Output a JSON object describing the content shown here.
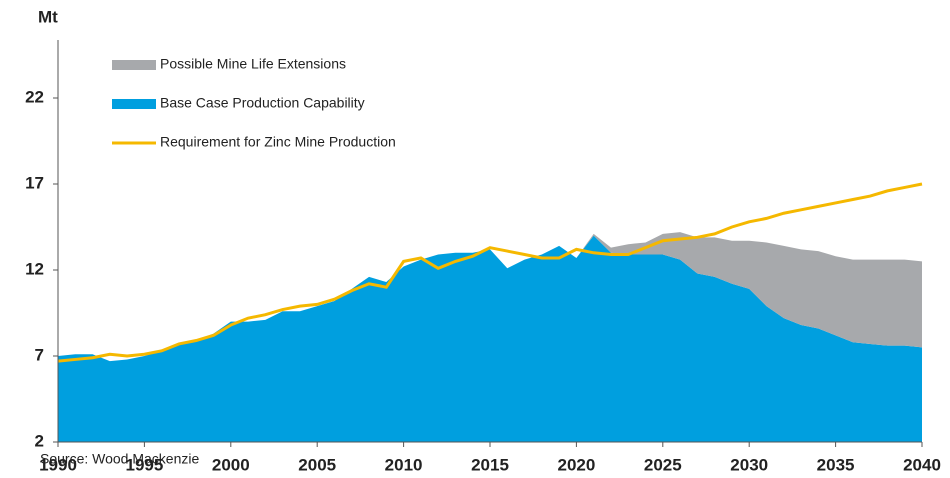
{
  "chart_data": {
    "type": "area",
    "y_label": "Mt",
    "source": "Source: Wood Mackenzie",
    "x": [
      1990,
      1991,
      1992,
      1993,
      1994,
      1995,
      1996,
      1997,
      1998,
      1999,
      2000,
      2001,
      2002,
      2003,
      2004,
      2005,
      2006,
      2007,
      2008,
      2009,
      2010,
      2011,
      2012,
      2013,
      2014,
      2015,
      2016,
      2017,
      2018,
      2019,
      2020,
      2021,
      2022,
      2023,
      2024,
      2025,
      2026,
      2027,
      2028,
      2029,
      2030,
      2031,
      2032,
      2033,
      2034,
      2035,
      2036,
      2037,
      2038,
      2039,
      2040
    ],
    "series": [
      {
        "name": "Possible Mine Life Extensions",
        "color": "#a7a9ac",
        "kind": "area",
        "values": [
          0,
          0,
          0,
          0,
          0,
          0,
          0,
          0,
          0,
          0,
          0,
          0,
          0,
          0,
          0,
          0,
          0,
          0,
          0,
          0,
          0,
          0,
          0,
          0,
          0,
          0,
          0,
          0,
          0,
          0,
          0,
          0.1,
          0.3,
          0.6,
          0.7,
          1.2,
          1.6,
          2.1,
          2.3,
          2.5,
          2.8,
          3.7,
          4.2,
          4.4,
          4.5,
          4.6,
          4.8,
          4.9,
          5.0,
          5.0,
          5.0
        ]
      },
      {
        "name": "Base Case Production Capability",
        "color": "#009fdf",
        "kind": "area",
        "values": [
          7.0,
          7.1,
          7.1,
          6.7,
          6.8,
          7.0,
          7.3,
          7.7,
          7.9,
          8.3,
          9.0,
          9.0,
          9.1,
          9.6,
          9.6,
          9.9,
          10.2,
          10.9,
          11.6,
          11.3,
          12.2,
          12.6,
          12.9,
          13.0,
          13.0,
          13.2,
          12.1,
          12.6,
          12.9,
          13.4,
          12.7,
          14.0,
          13.0,
          12.9,
          12.9,
          12.9,
          12.6,
          11.8,
          11.6,
          11.2,
          10.9,
          9.9,
          9.2,
          8.8,
          8.6,
          8.2,
          7.8,
          7.7,
          7.6,
          7.6,
          7.5
        ]
      },
      {
        "name": "Requirement for Zinc Mine Production",
        "color": "#f5b800",
        "kind": "line",
        "values": [
          6.7,
          6.8,
          6.9,
          7.1,
          7.0,
          7.1,
          7.3,
          7.7,
          7.9,
          8.2,
          8.8,
          9.2,
          9.4,
          9.7,
          9.9,
          10.0,
          10.3,
          10.8,
          11.2,
          11.0,
          12.5,
          12.7,
          12.1,
          12.5,
          12.8,
          13.3,
          13.1,
          12.9,
          12.7,
          12.7,
          13.2,
          13.0,
          12.9,
          12.9,
          13.3,
          13.7,
          13.8,
          13.9,
          14.1,
          14.5,
          14.8,
          15.0,
          15.3,
          15.5,
          15.7,
          15.9,
          16.1,
          16.3,
          16.6,
          16.8,
          17.0
        ]
      }
    ],
    "xlim": [
      1990,
      2040
    ],
    "xticks": [
      1990,
      1995,
      2000,
      2005,
      2010,
      2015,
      2020,
      2025,
      2030,
      2035,
      2040
    ],
    "ylim": [
      2,
      25
    ],
    "yticks": [
      2,
      7,
      12,
      17,
      22
    ]
  }
}
